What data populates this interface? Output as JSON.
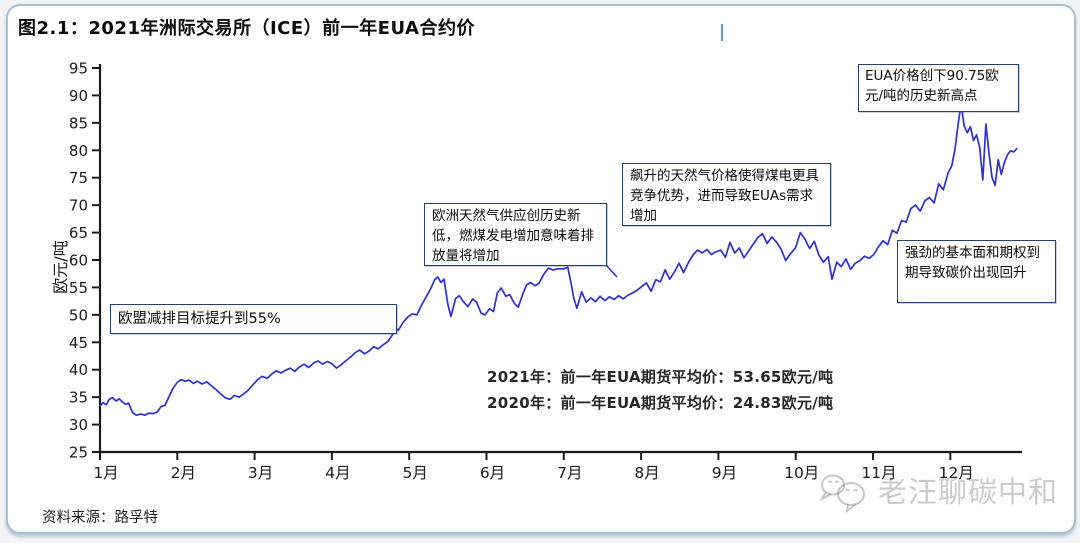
{
  "title": "图2.1：2021年洲际交易所（ICE）前一年EUA合约价",
  "source_note": "资料来源：路孚特",
  "watermark": {
    "text": "老汪聊碳中和",
    "icon": "wechat-icon"
  },
  "colors": {
    "line": "#2f2fd3",
    "annotation_border": "#24406b",
    "card_border": "#a6c0d2",
    "axis": "#1b1b1b",
    "cursor": "#5b9bd5",
    "watermark": "#c6c6c6"
  },
  "annotations": {
    "eu_target": "欧盟减排目标提升到55%",
    "gas_supply": "欧洲天然气供应创历史新低，燃煤发电增加意味着排放量将增加",
    "gas_price": "飙升的天然气价格使得煤电更具竞争优势，进而导致EUAs需求增加",
    "record_high": "EUA价格创下90.75欧元/吨的历史新高点",
    "fundamentals": "强劲的基本面和期权到期导致碳价出现回升",
    "avg_2021": "2021年：前一年EUA期货平均价：53.65欧元/吨",
    "avg_2020": "2020年：前一年EUA期货平均价：24.83欧元/吨"
  },
  "chart_data": {
    "type": "line",
    "title": "图2.1：2021年洲际交易所（ICE）前一年EUA合约价",
    "xlabel": "",
    "ylabel": "欧元/吨",
    "ylim": [
      25,
      95
    ],
    "yticks": [
      95,
      90,
      85,
      80,
      75,
      70,
      65,
      60,
      55,
      50,
      45,
      40,
      35,
      30,
      25
    ],
    "categories": [
      "1月",
      "2月",
      "3月",
      "4月",
      "5月",
      "6月",
      "7月",
      "8月",
      "9月",
      "10月",
      "11月",
      "12月"
    ],
    "grid": false,
    "legend": false,
    "key_values": {
      "record_high": 90.75,
      "avg_2021": 53.65,
      "avg_2020": 24.83
    },
    "series": [
      {
        "name": "前一年EUA合约价",
        "color": "#2f2fd3",
        "points": [
          [
            1.0,
            33.4
          ],
          [
            1.04,
            34.0
          ],
          [
            1.08,
            33.6
          ],
          [
            1.12,
            34.6
          ],
          [
            1.16,
            34.9
          ],
          [
            1.21,
            34.3
          ],
          [
            1.25,
            34.7
          ],
          [
            1.29,
            34.1
          ],
          [
            1.33,
            33.7
          ],
          [
            1.37,
            33.9
          ],
          [
            1.42,
            32.2
          ],
          [
            1.47,
            31.7
          ],
          [
            1.53,
            31.9
          ],
          [
            1.58,
            31.7
          ],
          [
            1.63,
            32.1
          ],
          [
            1.69,
            32.0
          ],
          [
            1.74,
            32.3
          ],
          [
            1.79,
            33.3
          ],
          [
            1.84,
            33.5
          ],
          [
            1.89,
            35.0
          ],
          [
            1.94,
            36.5
          ],
          [
            2.0,
            37.7
          ],
          [
            2.05,
            38.2
          ],
          [
            2.1,
            37.9
          ],
          [
            2.15,
            38.1
          ],
          [
            2.21,
            37.5
          ],
          [
            2.26,
            37.9
          ],
          [
            2.32,
            37.4
          ],
          [
            2.38,
            37.8
          ],
          [
            2.44,
            37.1
          ],
          [
            2.5,
            36.4
          ],
          [
            2.56,
            35.6
          ],
          [
            2.62,
            34.9
          ],
          [
            2.68,
            34.6
          ],
          [
            2.74,
            35.3
          ],
          [
            2.8,
            35.0
          ],
          [
            2.86,
            35.6
          ],
          [
            2.92,
            36.3
          ],
          [
            2.98,
            37.3
          ],
          [
            3.04,
            38.2
          ],
          [
            3.1,
            38.8
          ],
          [
            3.16,
            38.4
          ],
          [
            3.22,
            39.2
          ],
          [
            3.28,
            39.8
          ],
          [
            3.34,
            39.4
          ],
          [
            3.4,
            39.9
          ],
          [
            3.46,
            40.3
          ],
          [
            3.52,
            39.7
          ],
          [
            3.58,
            40.5
          ],
          [
            3.64,
            41.0
          ],
          [
            3.7,
            40.4
          ],
          [
            3.76,
            41.2
          ],
          [
            3.82,
            41.6
          ],
          [
            3.88,
            41.0
          ],
          [
            3.94,
            41.5
          ],
          [
            4.0,
            41.1
          ],
          [
            4.06,
            40.3
          ],
          [
            4.12,
            40.9
          ],
          [
            4.18,
            41.6
          ],
          [
            4.24,
            42.3
          ],
          [
            4.3,
            43.1
          ],
          [
            4.36,
            43.6
          ],
          [
            4.42,
            42.9
          ],
          [
            4.48,
            43.4
          ],
          [
            4.54,
            44.2
          ],
          [
            4.6,
            43.8
          ],
          [
            4.66,
            44.5
          ],
          [
            4.72,
            45.1
          ],
          [
            4.78,
            46.3
          ],
          [
            4.82,
            47.6
          ],
          [
            4.86,
            47.2
          ],
          [
            4.92,
            48.6
          ],
          [
            4.98,
            49.6
          ],
          [
            5.04,
            50.2
          ],
          [
            5.1,
            50.0
          ],
          [
            5.16,
            51.8
          ],
          [
            5.22,
            53.3
          ],
          [
            5.28,
            54.8
          ],
          [
            5.33,
            56.4
          ],
          [
            5.37,
            56.9
          ],
          [
            5.41,
            55.9
          ],
          [
            5.45,
            56.5
          ],
          [
            5.5,
            52.0
          ],
          [
            5.54,
            49.7
          ],
          [
            5.6,
            53.0
          ],
          [
            5.65,
            53.5
          ],
          [
            5.7,
            52.4
          ],
          [
            5.76,
            51.5
          ],
          [
            5.82,
            52.9
          ],
          [
            5.87,
            52.3
          ],
          [
            5.93,
            50.3
          ],
          [
            5.98,
            50.0
          ],
          [
            6.04,
            51.1
          ],
          [
            6.09,
            50.6
          ],
          [
            6.14,
            54.0
          ],
          [
            6.19,
            54.9
          ],
          [
            6.25,
            53.4
          ],
          [
            6.3,
            53.7
          ],
          [
            6.36,
            52.1
          ],
          [
            6.41,
            51.4
          ],
          [
            6.47,
            53.8
          ],
          [
            6.52,
            55.5
          ],
          [
            6.57,
            55.9
          ],
          [
            6.63,
            55.3
          ],
          [
            6.68,
            55.8
          ],
          [
            6.74,
            57.4
          ],
          [
            6.8,
            58.5
          ],
          [
            6.86,
            58.2
          ],
          [
            6.92,
            58.4
          ],
          [
            7.0,
            58.4
          ],
          [
            7.05,
            58.7
          ],
          [
            7.09,
            56.0
          ],
          [
            7.13,
            53.0
          ],
          [
            7.17,
            51.2
          ],
          [
            7.23,
            54.2
          ],
          [
            7.29,
            52.3
          ],
          [
            7.35,
            53.1
          ],
          [
            7.41,
            52.4
          ],
          [
            7.47,
            53.4
          ],
          [
            7.53,
            52.6
          ],
          [
            7.59,
            53.3
          ],
          [
            7.65,
            52.8
          ],
          [
            7.71,
            53.5
          ],
          [
            7.77,
            52.9
          ],
          [
            7.83,
            53.6
          ],
          [
            7.89,
            54.0
          ],
          [
            7.95,
            54.5
          ],
          [
            8.01,
            55.2
          ],
          [
            8.07,
            55.8
          ],
          [
            8.13,
            54.3
          ],
          [
            8.19,
            56.4
          ],
          [
            8.25,
            56.0
          ],
          [
            8.31,
            58.2
          ],
          [
            8.37,
            56.5
          ],
          [
            8.43,
            57.8
          ],
          [
            8.49,
            59.4
          ],
          [
            8.55,
            57.7
          ],
          [
            8.61,
            59.5
          ],
          [
            8.67,
            60.9
          ],
          [
            8.73,
            61.8
          ],
          [
            8.79,
            61.3
          ],
          [
            8.85,
            61.9
          ],
          [
            8.91,
            61.0
          ],
          [
            8.97,
            61.5
          ],
          [
            9.03,
            61.8
          ],
          [
            9.09,
            60.5
          ],
          [
            9.15,
            63.2
          ],
          [
            9.21,
            61.3
          ],
          [
            9.27,
            62.2
          ],
          [
            9.33,
            60.4
          ],
          [
            9.39,
            61.6
          ],
          [
            9.45,
            62.9
          ],
          [
            9.51,
            64.1
          ],
          [
            9.57,
            64.8
          ],
          [
            9.63,
            63.0
          ],
          [
            9.69,
            64.2
          ],
          [
            9.75,
            63.3
          ],
          [
            9.81,
            62.0
          ],
          [
            9.87,
            59.9
          ],
          [
            9.93,
            61.1
          ],
          [
            10.0,
            62.3
          ],
          [
            10.06,
            65.0
          ],
          [
            10.12,
            63.8
          ],
          [
            10.18,
            62.1
          ],
          [
            10.24,
            63.4
          ],
          [
            10.3,
            60.9
          ],
          [
            10.36,
            59.6
          ],
          [
            10.42,
            60.6
          ],
          [
            10.47,
            56.5
          ],
          [
            10.53,
            59.6
          ],
          [
            10.59,
            58.8
          ],
          [
            10.65,
            60.2
          ],
          [
            10.71,
            58.3
          ],
          [
            10.77,
            59.4
          ],
          [
            10.83,
            59.9
          ],
          [
            10.89,
            60.7
          ],
          [
            10.95,
            60.3
          ],
          [
            11.01,
            61.0
          ],
          [
            11.07,
            62.4
          ],
          [
            11.13,
            63.5
          ],
          [
            11.19,
            62.8
          ],
          [
            11.25,
            65.4
          ],
          [
            11.31,
            64.9
          ],
          [
            11.37,
            67.2
          ],
          [
            11.43,
            66.9
          ],
          [
            11.49,
            69.4
          ],
          [
            11.55,
            70.0
          ],
          [
            11.61,
            68.9
          ],
          [
            11.67,
            70.8
          ],
          [
            11.73,
            71.4
          ],
          [
            11.79,
            70.4
          ],
          [
            11.85,
            73.9
          ],
          [
            11.91,
            72.8
          ],
          [
            11.97,
            75.8
          ],
          [
            12.02,
            77.2
          ],
          [
            12.06,
            80.1
          ],
          [
            12.1,
            84.6
          ],
          [
            12.14,
            88.5
          ],
          [
            12.18,
            84.4
          ],
          [
            12.22,
            83.2
          ],
          [
            12.26,
            84.3
          ],
          [
            12.3,
            81.8
          ],
          [
            12.34,
            82.8
          ],
          [
            12.38,
            80.5
          ],
          [
            12.42,
            74.6
          ],
          [
            12.46,
            84.8
          ],
          [
            12.5,
            79.6
          ],
          [
            12.54,
            75.1
          ],
          [
            12.58,
            73.6
          ],
          [
            12.62,
            78.3
          ],
          [
            12.66,
            75.6
          ],
          [
            12.7,
            77.8
          ],
          [
            12.74,
            79.2
          ],
          [
            12.78,
            79.9
          ],
          [
            12.82,
            79.7
          ],
          [
            12.86,
            80.3
          ]
        ]
      }
    ]
  }
}
